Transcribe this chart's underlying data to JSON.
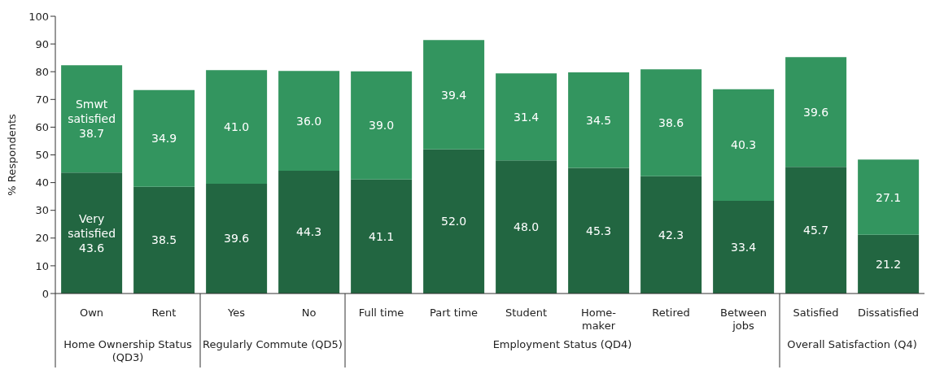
{
  "chart_data": {
    "type": "bar",
    "stacked": true,
    "ylabel": "% Respondents",
    "ylim": [
      0,
      100
    ],
    "yticks": [
      0,
      10,
      20,
      30,
      40,
      50,
      60,
      70,
      80,
      90,
      100
    ],
    "grid": false,
    "legend": false,
    "categories": [
      "Own",
      "Rent",
      "Yes",
      "No",
      "Full time",
      "Part time",
      "Student",
      "Home-maker",
      "Retired",
      "Between jobs",
      "Satisfied",
      "Dissatisfied"
    ],
    "series": [
      {
        "name": "Very satisfied",
        "color": "#226641",
        "values": [
          43.6,
          38.5,
          39.6,
          44.3,
          41.1,
          52.0,
          48.0,
          45.3,
          42.3,
          33.4,
          45.7,
          21.2
        ],
        "value_labels": [
          "43.6",
          "38.5",
          "39.6",
          "44.3",
          "41.1",
          "52.0",
          "48.0",
          "45.3",
          "42.3",
          "33.4",
          "45.7",
          "21.2"
        ]
      },
      {
        "name": "Smwt satisfied",
        "color": "#33955f",
        "values": [
          38.7,
          34.9,
          41.0,
          36.0,
          39.0,
          39.4,
          31.4,
          34.5,
          38.6,
          40.3,
          39.6,
          27.1
        ],
        "value_labels": [
          "38.7",
          "34.9",
          "41.0",
          "36.0",
          "39.0",
          "39.4",
          "31.4",
          "34.5",
          "38.6",
          "40.3",
          "39.6",
          "27.1"
        ]
      }
    ],
    "annotations": [
      "Home Ownership Status (QD3)",
      "Regularly Commute (QD5)",
      "Employment Status (QD4)",
      "Overall Satisfaction (Q4)"
    ]
  }
}
